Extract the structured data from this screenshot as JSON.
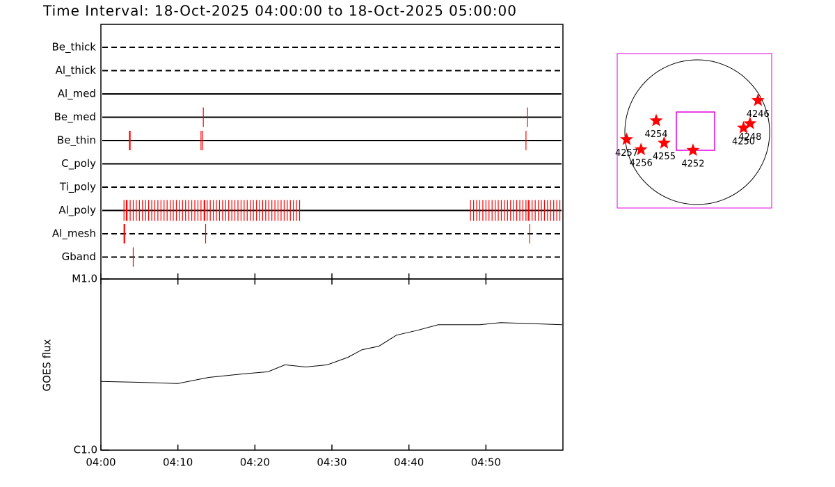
{
  "title": "Time Interval: 18-Oct-2025 04:00:00 to 18-Oct-2025 05:00:00",
  "chart_data": [
    {
      "type": "timeline",
      "xlim": [
        0,
        60
      ],
      "color": "#ff0000",
      "rows": [
        {
          "name": "Be_thick",
          "style": "dashed",
          "events": []
        },
        {
          "name": "Al_thick",
          "style": "dashed",
          "events": []
        },
        {
          "name": "Al_med",
          "style": "solid",
          "events": []
        },
        {
          "name": "Be_med",
          "style": "solid",
          "events": [
            13.3,
            55.4
          ]
        },
        {
          "name": "Be_thin",
          "style": "solid",
          "events": [
            3.7,
            3.8,
            13.0,
            13.2,
            55.2
          ]
        },
        {
          "name": "C_poly",
          "style": "solid",
          "events": []
        },
        {
          "name": "Ti_poly",
          "style": "dashed",
          "events": []
        },
        {
          "name": "Al_poly",
          "style": "solid",
          "events": [
            3.0,
            3.3,
            3.4,
            3.8,
            4.2,
            4.6,
            5.0,
            5.4,
            5.8,
            6.2,
            6.6,
            7.0,
            7.4,
            7.8,
            8.2,
            8.6,
            9.0,
            9.4,
            9.8,
            10.2,
            10.6,
            11.0,
            11.4,
            11.8,
            12.2,
            12.6,
            13.0,
            13.4,
            13.5,
            13.8,
            14.2,
            14.6,
            15.0,
            15.4,
            15.8,
            16.2,
            16.6,
            17.0,
            17.4,
            17.8,
            18.2,
            18.6,
            19.0,
            19.4,
            19.8,
            20.2,
            20.6,
            21.0,
            21.4,
            21.8,
            22.2,
            22.6,
            23.0,
            23.4,
            23.8,
            24.2,
            24.6,
            25.0,
            25.4,
            25.8,
            48.0,
            48.4,
            48.8,
            49.2,
            49.6,
            50.0,
            50.4,
            50.8,
            51.2,
            51.6,
            52.0,
            52.4,
            52.8,
            53.2,
            53.6,
            54.0,
            54.4,
            54.8,
            55.2,
            55.5,
            55.6,
            56.0,
            56.4,
            56.8,
            57.2,
            57.6,
            58.0,
            58.4,
            58.8,
            59.2,
            59.6
          ]
        },
        {
          "name": "Al_mesh",
          "style": "dashed",
          "events": [
            3.0,
            3.1,
            13.6,
            55.7
          ]
        },
        {
          "name": "Gband",
          "style": "dashed",
          "events": [
            4.2
          ]
        }
      ]
    },
    {
      "type": "line",
      "ylabel": "GOES flux",
      "x": [
        0,
        4.97,
        10.0,
        14.0,
        18.5,
        21.7,
        23.9,
        26.6,
        29.4,
        32.1,
        33.9,
        36.1,
        38.4,
        41.1,
        43.8,
        49.2,
        51.9,
        57.4,
        59.9
      ],
      "values": [
        2.52e-06,
        2.49e-06,
        2.45e-06,
        2.66e-06,
        2.79e-06,
        2.87e-06,
        3.15e-06,
        3.06e-06,
        3.15e-06,
        3.49e-06,
        3.86e-06,
        4.05e-06,
        4.7e-06,
        5.01e-06,
        5.4e-06,
        5.4e-06,
        5.56e-06,
        5.46e-06,
        5.4e-06
      ],
      "color": "#000000",
      "log_scale": true,
      "xlim": [
        0,
        60
      ],
      "xticks": [
        {
          "value": 0,
          "label": "04:00"
        },
        {
          "value": 10,
          "label": "04:10"
        },
        {
          "value": 20,
          "label": "04:20"
        },
        {
          "value": 30,
          "label": "04:30"
        },
        {
          "value": 40,
          "label": "04:40"
        },
        {
          "value": 50,
          "label": "04:50"
        }
      ],
      "ylim": [
        1e-06,
        1e-05
      ],
      "yticks": [
        {
          "value": 1e-06,
          "label": "C1.0"
        },
        {
          "value": 1e-05,
          "label": "M1.0"
        }
      ]
    },
    {
      "type": "map",
      "color": "#ff0000",
      "xlim": [
        -1.07,
        1.07
      ],
      "ylim": [
        -1.07,
        1.07
      ],
      "points": [
        {
          "label": "4246",
          "x": 0.88,
          "y": 0.42
        },
        {
          "label": "4248",
          "x": 0.77,
          "y": 0.1
        },
        {
          "label": "4250",
          "x": 0.68,
          "y": 0.04
        },
        {
          "label": "4254",
          "x": -0.53,
          "y": 0.14
        },
        {
          "label": "4257",
          "x": -0.94,
          "y": -0.12
        },
        {
          "label": "4256",
          "x": -0.74,
          "y": -0.26
        },
        {
          "label": "4255",
          "x": -0.42,
          "y": -0.17
        },
        {
          "label": "4252",
          "x": -0.02,
          "y": -0.27
        }
      ]
    }
  ]
}
